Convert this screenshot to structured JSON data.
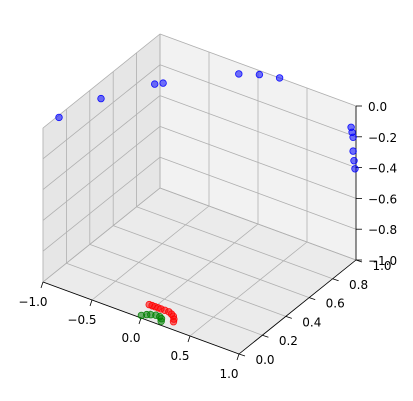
{
  "chart_data": {
    "type": "scatter",
    "projection": "3d",
    "title": "",
    "xlabel": "",
    "ylabel": "",
    "zlabel": "",
    "xlim": [
      -1.0,
      1.0
    ],
    "ylim": [
      0.0,
      1.0
    ],
    "zlim": [
      -1.0,
      0.0
    ],
    "grid": true,
    "legend": "none",
    "x_ticks": [
      "−1.0",
      "−0.5",
      "0.0",
      "0.5",
      "1.0"
    ],
    "x_tick_values": [
      -1.0,
      -0.5,
      0.0,
      0.5,
      1.0
    ],
    "y_ticks": [
      "0.0",
      "0.2",
      "0.4",
      "0.6",
      "0.8",
      "1.0"
    ],
    "y_tick_values": [
      0.0,
      0.2,
      0.4,
      0.6,
      0.8,
      1.0
    ],
    "z_ticks": [
      "−1.0",
      "−0.8",
      "−0.6",
      "−0.4",
      "−0.2",
      "0.0"
    ],
    "z_tick_values": [
      -1.0,
      -0.8,
      -0.6,
      -0.4,
      -0.2,
      0.0
    ],
    "series": [
      {
        "color": "#0000ff",
        "points": [
          [
            -0.98,
            0.12,
            0.0
          ],
          [
            -0.85,
            0.37,
            0.0
          ],
          [
            -0.6,
            0.62,
            0.0
          ],
          [
            -0.55,
            0.65,
            0.0
          ],
          [
            -0.1,
            0.92,
            0.0
          ],
          [
            0.05,
            0.97,
            0.0
          ],
          [
            0.22,
            1.0,
            0.0
          ],
          [
            0.95,
            1.0,
            -0.15
          ],
          [
            0.96,
            1.0,
            -0.18
          ],
          [
            0.97,
            1.0,
            -0.21
          ],
          [
            0.97,
            1.0,
            -0.3
          ],
          [
            0.98,
            1.0,
            -0.36
          ],
          [
            0.99,
            1.0,
            -0.41
          ]
        ]
      },
      {
        "color": "#ff0000",
        "points": [
          [
            -0.06,
            0.12,
            -1.0
          ],
          [
            -0.03,
            0.12,
            -1.0
          ],
          [
            0.0,
            0.12,
            -1.0
          ],
          [
            0.03,
            0.12,
            -1.0
          ],
          [
            0.06,
            0.12,
            -1.0
          ],
          [
            0.1,
            0.12,
            -1.0
          ],
          [
            0.14,
            0.12,
            -1.0
          ],
          [
            0.18,
            0.11,
            -1.0
          ],
          [
            0.21,
            0.1,
            -1.0
          ],
          [
            0.24,
            0.08,
            -1.0
          ],
          [
            0.26,
            0.06,
            -1.0
          ]
        ]
      },
      {
        "color": "#008000",
        "points": [
          [
            -0.02,
            0.02,
            -1.0
          ],
          [
            0.01,
            0.04,
            -1.0
          ],
          [
            0.04,
            0.05,
            -1.0
          ],
          [
            0.08,
            0.06,
            -1.0
          ],
          [
            0.12,
            0.06,
            -1.0
          ],
          [
            0.15,
            0.05,
            -1.0
          ],
          [
            0.17,
            0.03,
            -1.0
          ]
        ]
      }
    ]
  }
}
